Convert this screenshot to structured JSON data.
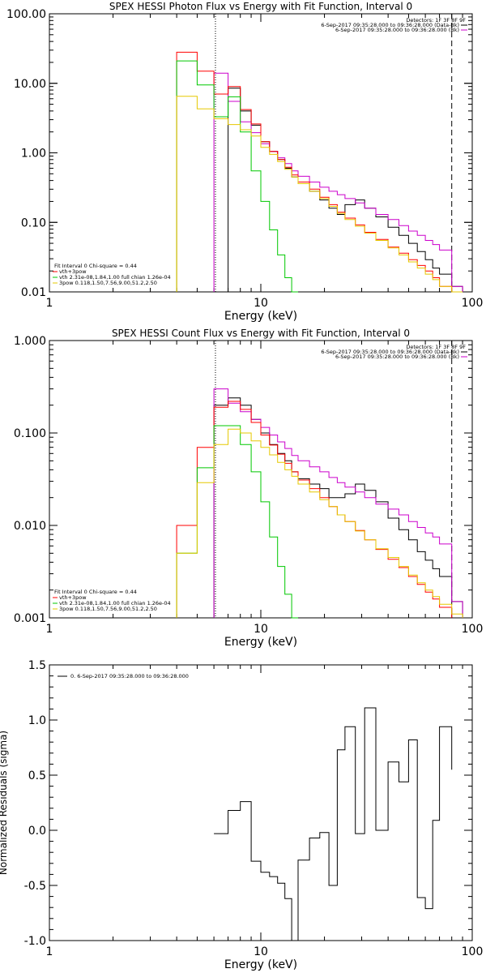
{
  "chart_data": [
    {
      "id": "photon",
      "type": "line",
      "title": "SPEX HESSI Photon Flux vs Energy with Fit Function, Interval 0",
      "xlabel": "Energy (keV)",
      "ylabel": "",
      "xscale": "log",
      "yscale": "log",
      "xlim": [
        1,
        100
      ],
      "ylim": [
        0.01,
        100
      ],
      "xticks": [
        {
          "v": 1,
          "label": "1"
        },
        {
          "v": 10,
          "label": "10"
        },
        {
          "v": 100,
          "label": "100"
        }
      ],
      "yticks": [
        {
          "v": 0.01,
          "label": "0.01"
        },
        {
          "v": 0.1,
          "label": "0.10"
        },
        {
          "v": 1,
          "label": "1.00"
        },
        {
          "v": 10,
          "label": "10.00"
        },
        {
          "v": 100,
          "label": "100.00"
        }
      ],
      "vlines": [
        {
          "x": 6.1,
          "style": "dotted"
        },
        {
          "x": 80,
          "style": "dashed"
        }
      ],
      "legend_top_right": [
        "Detectors: 1F 3F 8F 9F",
        "6-Sep-2017 09:35:28.000 to 09:36:28.000 (Data-Bk)",
        "6-Sep-2017 09:35:28.000 to 09:36:28.000 (Bk)"
      ],
      "legend_bottom_left": [
        "Fit Interval 0   Chi-square = 0.44",
        "vth+3pow",
        "vth 2.31e-08,1.84,1.00  full chian 1.26e-04",
        "3pow 0.118,1.50,7.56,9.00,51.2,2.50"
      ],
      "edges": [
        4,
        5,
        6,
        7,
        8,
        9,
        10,
        11,
        12,
        13,
        14,
        15,
        17,
        19,
        21,
        23,
        25,
        28,
        31,
        35,
        40,
        45,
        50,
        55,
        60,
        65,
        70,
        80,
        90
      ],
      "series": [
        {
          "name": "Data-Bk",
          "color": "#000000",
          "values": [
            null,
            null,
            null,
            8.5,
            4.0,
            2.5,
            1.45,
            1.05,
            0.8,
            0.6,
            0.45,
            0.36,
            0.28,
            0.21,
            0.16,
            0.13,
            0.18,
            0.21,
            0.16,
            0.12,
            0.085,
            0.065,
            0.05,
            0.038,
            0.029,
            0.022,
            0.018,
            0.012
          ]
        },
        {
          "name": "Bk",
          "color": "#cc00cc",
          "values": [
            null,
            null,
            14.0,
            5.5,
            2.8,
            1.95,
            1.35,
            1.05,
            0.85,
            0.7,
            0.55,
            0.46,
            0.38,
            0.32,
            0.28,
            0.25,
            0.22,
            0.19,
            0.16,
            0.13,
            0.11,
            0.09,
            0.075,
            0.065,
            0.055,
            0.048,
            0.04,
            0.012
          ]
        },
        {
          "name": "vth+3pow",
          "color": "#ff0000",
          "values": [
            28.0,
            15.0,
            7.0,
            9.0,
            4.2,
            2.6,
            1.45,
            1.05,
            0.8,
            0.62,
            0.48,
            0.38,
            0.3,
            0.23,
            0.18,
            0.14,
            0.115,
            0.092,
            0.072,
            0.057,
            0.044,
            0.036,
            0.029,
            0.024,
            0.02,
            0.016,
            0.012,
            null
          ]
        },
        {
          "name": "vth",
          "color": "#00c800",
          "values": [
            21.0,
            9.5,
            3.3,
            6.4,
            2.0,
            0.55,
            0.2,
            0.078,
            0.034,
            0.016,
            0.01,
            null,
            null,
            null,
            null,
            null,
            null,
            null,
            null,
            null,
            null,
            null,
            null,
            null,
            null,
            null,
            null,
            null
          ]
        },
        {
          "name": "3pow",
          "color": "#e6c800",
          "values": [
            6.5,
            4.3,
            3.1,
            2.55,
            2.15,
            1.75,
            1.2,
            0.95,
            0.75,
            0.58,
            0.45,
            0.36,
            0.28,
            0.22,
            0.17,
            0.135,
            0.11,
            0.088,
            0.07,
            0.055,
            0.043,
            0.034,
            0.027,
            0.022,
            0.018,
            0.015,
            0.012,
            0.01
          ]
        }
      ]
    },
    {
      "id": "count",
      "type": "line",
      "title": "SPEX HESSI Count Flux vs Energy with Fit Function, Interval 0",
      "xlabel": "Energy (keV)",
      "ylabel": "",
      "xscale": "log",
      "yscale": "log",
      "xlim": [
        1,
        100
      ],
      "ylim": [
        0.001,
        1
      ],
      "xticks": [
        {
          "v": 1,
          "label": "1"
        },
        {
          "v": 10,
          "label": "10"
        },
        {
          "v": 100,
          "label": "100"
        }
      ],
      "yticks": [
        {
          "v": 0.001,
          "label": "0.001"
        },
        {
          "v": 0.01,
          "label": "0.010"
        },
        {
          "v": 0.1,
          "label": "0.100"
        },
        {
          "v": 1,
          "label": "1.000"
        }
      ],
      "vlines": [
        {
          "x": 6.1,
          "style": "dotted"
        },
        {
          "x": 80,
          "style": "dashed"
        }
      ],
      "legend_top_right": [
        "Detectors: 1F 3F 8F 9F",
        "6-Sep-2017 09:35:28.000 to 09:36:28.000 (Data-Bk)",
        "6-Sep-2017 09:35:28.000 to 09:36:28.000 (Bk)"
      ],
      "legend_bottom_left": [
        "Fit Interval 0   Chi-square = 0.44",
        "vth+3pow",
        "vth 2.31e-08,1.84,1.00  full chian 1.26e-04",
        "3pow 0.118,1.50,7.56,9.00,51.2,2.50"
      ],
      "edges": [
        4,
        5,
        6,
        7,
        8,
        9,
        10,
        11,
        12,
        13,
        14,
        15,
        17,
        19,
        21,
        23,
        25,
        28,
        31,
        35,
        40,
        45,
        50,
        55,
        60,
        65,
        70,
        80,
        90
      ],
      "series": [
        {
          "name": "Data-Bk",
          "color": "#000000",
          "values": [
            null,
            null,
            0.2,
            0.24,
            0.2,
            0.14,
            0.1,
            0.075,
            0.06,
            0.05,
            0.038,
            0.032,
            0.028,
            0.025,
            0.02,
            0.02,
            0.022,
            0.028,
            0.024,
            0.018,
            0.012,
            0.009,
            0.007,
            0.0052,
            0.0042,
            0.0034,
            0.0028,
            0.0015
          ]
        },
        {
          "name": "Bk",
          "color": "#cc00cc",
          "values": [
            null,
            null,
            0.3,
            0.21,
            0.17,
            0.14,
            0.115,
            0.095,
            0.08,
            0.068,
            0.057,
            0.05,
            0.043,
            0.038,
            0.033,
            0.029,
            0.026,
            0.023,
            0.02,
            0.017,
            0.015,
            0.013,
            0.011,
            0.0095,
            0.0083,
            0.0075,
            0.0063,
            0.0015
          ]
        },
        {
          "name": "vth+3pow",
          "color": "#ff0000",
          "values": [
            0.01,
            0.07,
            0.19,
            0.22,
            0.18,
            0.13,
            0.095,
            0.074,
            0.059,
            0.047,
            0.038,
            0.031,
            0.025,
            0.02,
            0.016,
            0.013,
            0.011,
            0.0088,
            0.007,
            0.0055,
            0.0043,
            0.0035,
            0.0028,
            0.0023,
            0.0019,
            0.0016,
            0.0013,
            null
          ]
        },
        {
          "name": "vth",
          "color": "#00c800",
          "values": [
            0.005,
            0.042,
            0.12,
            0.12,
            0.075,
            0.038,
            0.018,
            0.0075,
            0.0036,
            0.0018,
            0.001,
            null,
            null,
            null,
            null,
            null,
            null,
            null,
            null,
            null,
            null,
            null,
            null,
            null,
            null,
            null,
            null,
            null
          ]
        },
        {
          "name": "3pow",
          "color": "#e6c800",
          "values": [
            0.005,
            0.029,
            0.075,
            0.11,
            0.1,
            0.082,
            0.07,
            0.058,
            0.048,
            0.04,
            0.034,
            0.028,
            0.023,
            0.019,
            0.016,
            0.013,
            0.011,
            0.0087,
            0.007,
            0.0056,
            0.0045,
            0.0036,
            0.0029,
            0.0024,
            0.002,
            0.0017,
            0.0014,
            0.0011
          ]
        }
      ]
    },
    {
      "id": "resid",
      "type": "line",
      "title": "",
      "xlabel": "Energy (keV)",
      "ylabel": "Normalized Residuals (sigma)",
      "xscale": "log",
      "yscale": "linear",
      "xlim": [
        1,
        100
      ],
      "ylim": [
        -1,
        1.5
      ],
      "xticks": [
        {
          "v": 1,
          "label": "1"
        },
        {
          "v": 10,
          "label": "10"
        },
        {
          "v": 100,
          "label": "100"
        }
      ],
      "yticks": [
        {
          "v": -1,
          "label": "-1.0"
        },
        {
          "v": -0.5,
          "label": "-0.5"
        },
        {
          "v": 0,
          "label": "0.0"
        },
        {
          "v": 0.5,
          "label": "0.5"
        },
        {
          "v": 1,
          "label": "1.0"
        },
        {
          "v": 1.5,
          "label": "1.5"
        }
      ],
      "legend_top_left": [
        "0.  6-Sep-2017 09:35:28.000 to 09:36:28.000"
      ],
      "edges": [
        6,
        7,
        8,
        9,
        10,
        11,
        12,
        13,
        14,
        15,
        17,
        19,
        21,
        23,
        25,
        28,
        31,
        35,
        40,
        45,
        50,
        55,
        60,
        65,
        70,
        80
      ],
      "series": [
        {
          "name": "",
          "color": "#000000",
          "values": [
            -0.03,
            0.18,
            0.26,
            -0.28,
            -0.38,
            -0.42,
            -0.48,
            -0.62,
            -1.0,
            -0.27,
            -0.07,
            -0.02,
            -0.5,
            0.73,
            0.94,
            -0.03,
            1.11,
            0.0,
            0.62,
            0.44,
            0.82,
            -0.61,
            -0.71,
            0.09,
            0.94,
            0.55
          ]
        }
      ]
    }
  ]
}
